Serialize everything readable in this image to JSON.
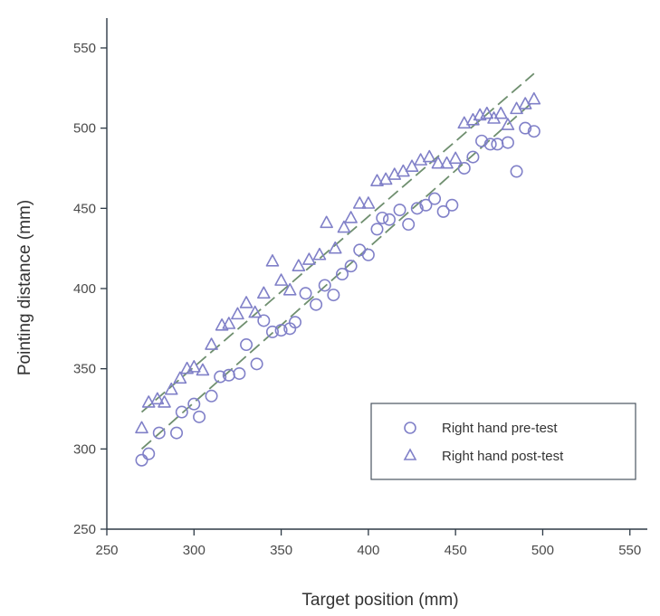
{
  "chart_data": {
    "type": "scatter",
    "title": "",
    "xlabel": "Target position (mm)",
    "ylabel": "Pointing distance (mm)",
    "xlim": [
      250,
      575
    ],
    "ylim": [
      250,
      575
    ],
    "xticks": [
      250,
      300,
      350,
      400,
      450,
      500,
      550
    ],
    "yticks": [
      250,
      300,
      350,
      400,
      450,
      500,
      550
    ],
    "grid": false,
    "legend_position": "bottom-right",
    "colors": {
      "marker": "#8080c8",
      "fit_line": "#6f8f6f",
      "axis": "#2e3a46"
    },
    "series": [
      {
        "name": "Right hand pre-test",
        "marker": "circle",
        "points": [
          [
            270,
            293
          ],
          [
            274,
            297
          ],
          [
            280,
            310
          ],
          [
            290,
            310
          ],
          [
            293,
            323
          ],
          [
            300,
            328
          ],
          [
            303,
            320
          ],
          [
            310,
            333
          ],
          [
            315,
            345
          ],
          [
            320,
            346
          ],
          [
            326,
            347
          ],
          [
            330,
            365
          ],
          [
            336,
            353
          ],
          [
            340,
            380
          ],
          [
            345,
            373
          ],
          [
            350,
            374
          ],
          [
            355,
            375
          ],
          [
            358,
            379
          ],
          [
            364,
            397
          ],
          [
            370,
            390
          ],
          [
            375,
            402
          ],
          [
            380,
            396
          ],
          [
            385,
            409
          ],
          [
            390,
            414
          ],
          [
            395,
            424
          ],
          [
            400,
            421
          ],
          [
            405,
            437
          ],
          [
            408,
            444
          ],
          [
            412,
            443
          ],
          [
            418,
            449
          ],
          [
            423,
            440
          ],
          [
            428,
            450
          ],
          [
            433,
            452
          ],
          [
            438,
            456
          ],
          [
            443,
            448
          ],
          [
            448,
            452
          ],
          [
            455,
            475
          ],
          [
            460,
            482
          ],
          [
            465,
            492
          ],
          [
            470,
            490
          ],
          [
            474,
            490
          ],
          [
            480,
            491
          ],
          [
            485,
            473
          ],
          [
            490,
            500
          ],
          [
            495,
            498
          ]
        ],
        "fit": [
          [
            270,
            300
          ],
          [
            495,
            517
          ]
        ]
      },
      {
        "name": "Right hand post-test",
        "marker": "triangle",
        "points": [
          [
            270,
            313
          ],
          [
            274,
            329
          ],
          [
            279,
            331
          ],
          [
            283,
            329
          ],
          [
            287,
            337
          ],
          [
            292,
            344
          ],
          [
            296,
            350
          ],
          [
            300,
            351
          ],
          [
            305,
            349
          ],
          [
            310,
            365
          ],
          [
            316,
            377
          ],
          [
            320,
            378
          ],
          [
            325,
            384
          ],
          [
            330,
            391
          ],
          [
            335,
            385
          ],
          [
            340,
            397
          ],
          [
            345,
            417
          ],
          [
            350,
            405
          ],
          [
            355,
            399
          ],
          [
            360,
            414
          ],
          [
            366,
            418
          ],
          [
            372,
            421
          ],
          [
            376,
            441
          ],
          [
            381,
            425
          ],
          [
            386,
            438
          ],
          [
            390,
            444
          ],
          [
            395,
            453
          ],
          [
            400,
            453
          ],
          [
            405,
            467
          ],
          [
            410,
            468
          ],
          [
            415,
            471
          ],
          [
            420,
            473
          ],
          [
            425,
            476
          ],
          [
            430,
            480
          ],
          [
            435,
            482
          ],
          [
            440,
            478
          ],
          [
            445,
            478
          ],
          [
            450,
            481
          ],
          [
            455,
            503
          ],
          [
            460,
            505
          ],
          [
            464,
            508
          ],
          [
            468,
            509
          ],
          [
            472,
            506
          ],
          [
            476,
            509
          ],
          [
            480,
            502
          ],
          [
            485,
            512
          ],
          [
            490,
            515
          ],
          [
            495,
            518
          ]
        ],
        "fit": [
          [
            270,
            323
          ],
          [
            495,
            534
          ]
        ]
      }
    ]
  }
}
